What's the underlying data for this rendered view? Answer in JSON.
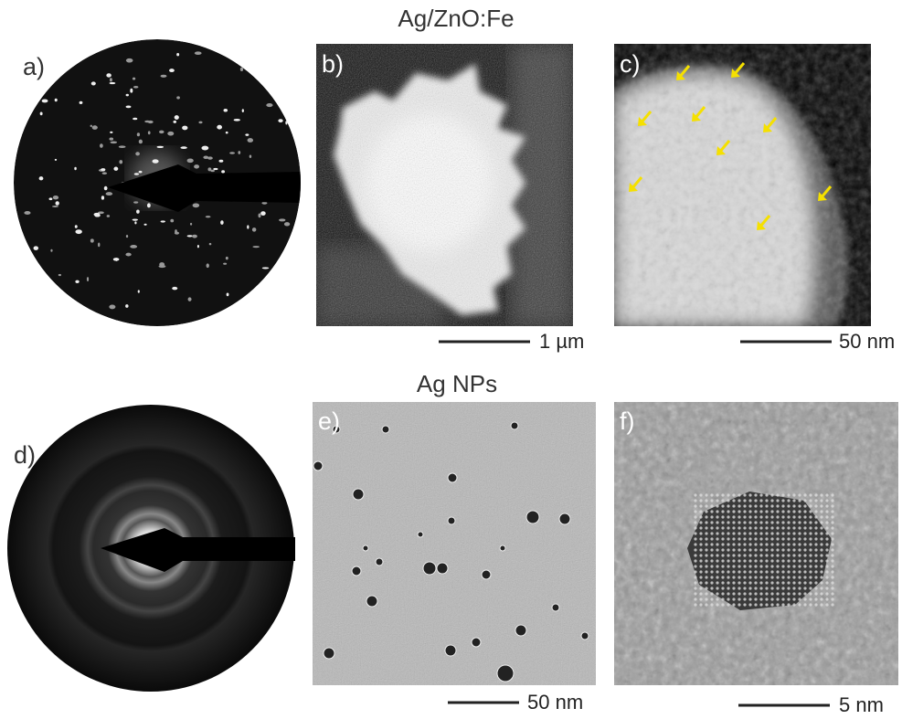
{
  "sections": [
    {
      "title": "Ag/ZnO:Fe",
      "panels": [
        {
          "label": "a)"
        },
        {
          "label": "b)",
          "scale_bar": "1 µm"
        },
        {
          "label": "c)",
          "scale_bar": "50 nm"
        }
      ]
    },
    {
      "title": "Ag NPs",
      "panels": [
        {
          "label": "d)"
        },
        {
          "label": "e)",
          "scale_bar": "50 nm"
        },
        {
          "label": "f)",
          "scale_bar": "5 nm"
        }
      ]
    }
  ]
}
